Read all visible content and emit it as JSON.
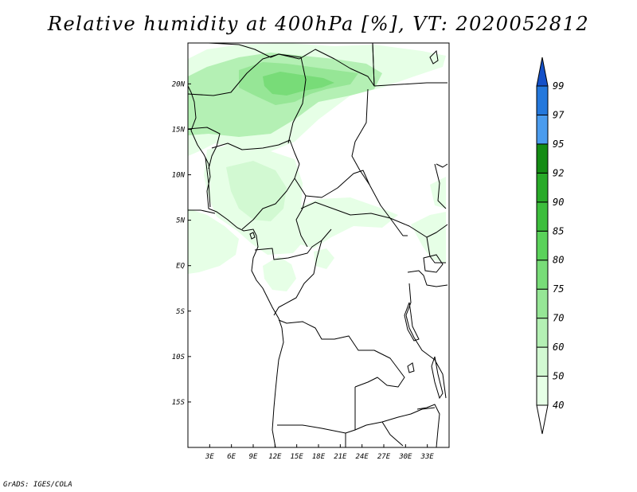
{
  "title": "Relative humidity at 400hPa [%], VT: 2020052812",
  "credit": "GrADS: IGES/COLA",
  "map": {
    "lon_range": [
      0,
      36
    ],
    "lat_range": [
      -20,
      24.5
    ],
    "x_ticks": [
      "3E",
      "6E",
      "9E",
      "12E",
      "15E",
      "18E",
      "21E",
      "24E",
      "27E",
      "30E",
      "33E"
    ],
    "x_tick_values": [
      3,
      6,
      9,
      12,
      15,
      18,
      21,
      24,
      27,
      30,
      33
    ],
    "y_ticks": [
      "20N",
      "15N",
      "10N",
      "5N",
      "EQ",
      "5S",
      "10S",
      "15S"
    ],
    "y_tick_values": [
      20,
      15,
      10,
      5,
      0,
      -5,
      -10,
      -15
    ]
  },
  "colorbar": {
    "levels": [
      "40",
      "50",
      "60",
      "70",
      "75",
      "80",
      "85",
      "90",
      "92",
      "95",
      "97",
      "99"
    ],
    "colors": [
      "#ffffff",
      "#e6ffe6",
      "#d2f9d2",
      "#b4f0b4",
      "#96e696",
      "#78dc78",
      "#5ad25a",
      "#3cbe3c",
      "#28aa28",
      "#148c14",
      "#4b9cee",
      "#2478dc",
      "#1450c8"
    ]
  },
  "humidity_colors": {
    "c40": "#e6ffe6",
    "c50": "#d2f9d2",
    "c60": "#b4f0b4",
    "c70": "#96e696",
    "c75": "#78dc78"
  }
}
